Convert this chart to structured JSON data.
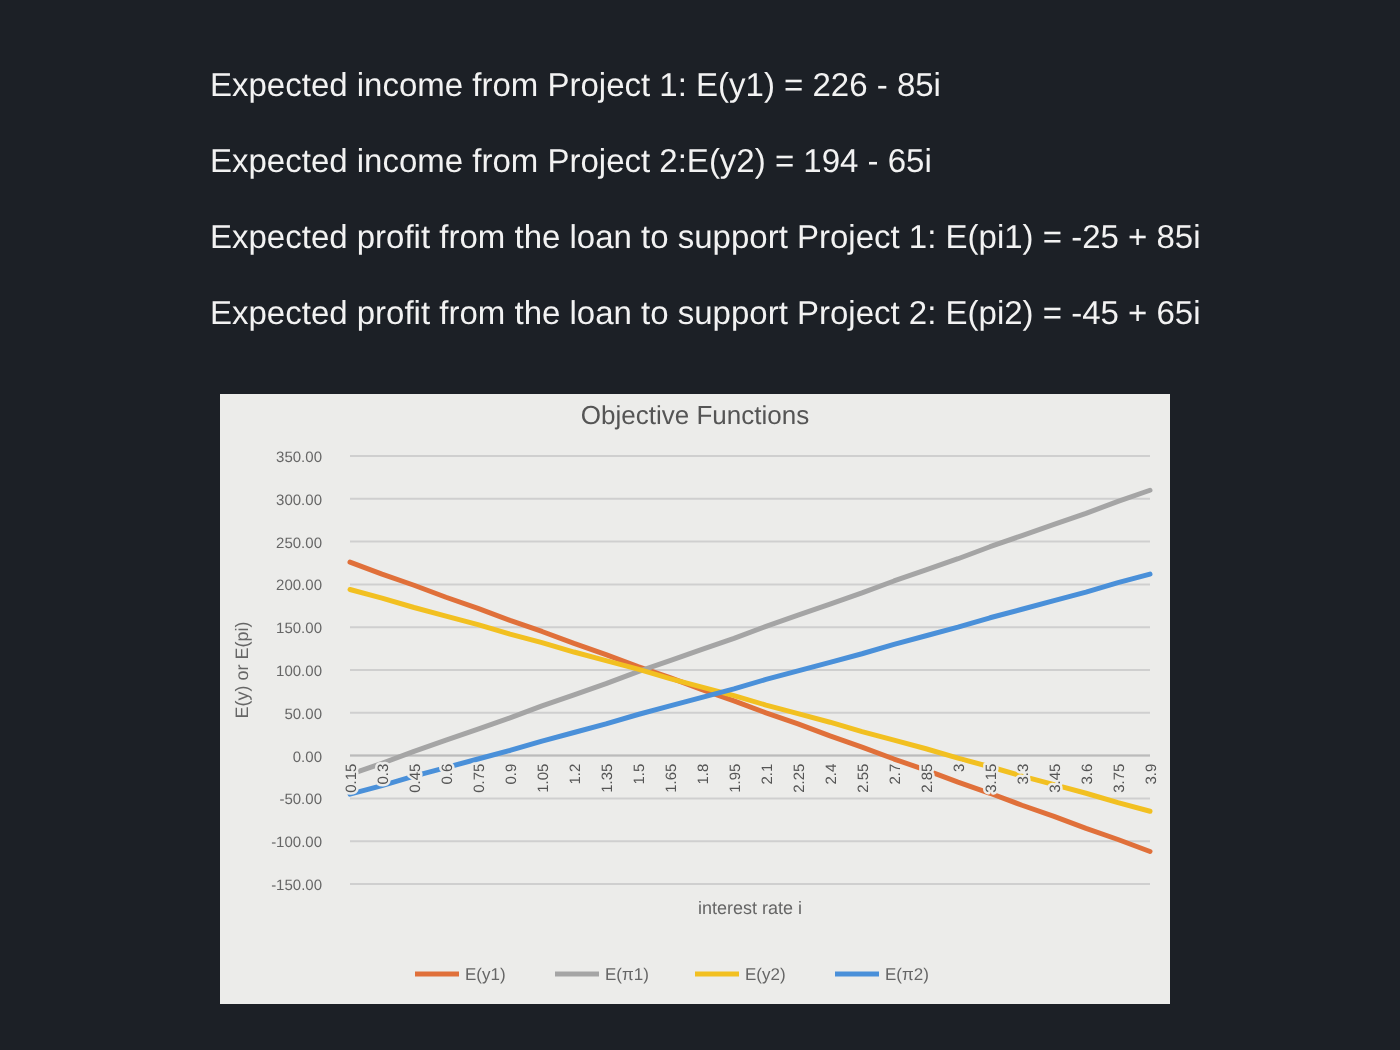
{
  "chart_data": {
    "type": "line",
    "title": "Objective Functions",
    "xlabel": "interest rate i",
    "ylabel": "E(y) or E(pi)",
    "annotations": [
      "Expected income from Project 1: E(y1) = 226 - 85i",
      "Expected income from Project 2:E(y2) = 194 - 65i",
      "Expected profit from the loan to support Project 1: E(pi1) = -25 + 85i",
      "Expected profit from the loan to support Project 2: E(pi2) = -45 + 65i"
    ],
    "categories": [
      "0.15",
      "0.3",
      "0.45",
      "0.6",
      "0.75",
      "0.9",
      "1.05",
      "1.2",
      "1.35",
      "1.5",
      "1.65",
      "1.8",
      "1.95",
      "2.1",
      "2.25",
      "2.4",
      "2.55",
      "2.7",
      "2.85",
      "3",
      "3.15",
      "3.3",
      "3.45",
      "3.6",
      "3.75",
      "3.9"
    ],
    "series": [
      {
        "name": "E(y1)",
        "color": "#e0703a",
        "values": [
          226,
          212,
          199,
          185,
          172,
          158,
          145,
          131,
          118,
          104,
          91,
          77,
          64,
          50,
          37,
          23,
          10,
          -4,
          -17,
          -31,
          -44,
          -58,
          -71,
          -85,
          -98,
          -112
        ]
      },
      {
        "name": "E(π1)",
        "color": "#a5a5a5",
        "values": [
          -22,
          -9,
          5,
          18,
          31,
          44,
          58,
          71,
          84,
          98,
          111,
          124,
          137,
          151,
          164,
          177,
          190,
          204,
          217,
          230,
          244,
          257,
          270,
          283,
          297,
          310
        ]
      },
      {
        "name": "E(y2)",
        "color": "#f2c021",
        "values": [
          194,
          184,
          173,
          163,
          153,
          142,
          132,
          121,
          111,
          101,
          90,
          80,
          70,
          59,
          49,
          39,
          28,
          18,
          8,
          -3,
          -13,
          -24,
          -34,
          -44,
          -55,
          -65
        ]
      },
      {
        "name": "E(π2)",
        "color": "#4a90d9",
        "values": [
          -45,
          -35,
          -24,
          -14,
          -4,
          6,
          17,
          27,
          37,
          48,
          58,
          68,
          78,
          89,
          99,
          109,
          119,
          130,
          140,
          150,
          161,
          171,
          181,
          191,
          202,
          212
        ]
      }
    ],
    "ylim": [
      -150,
      350
    ],
    "yticks": [
      {
        "value": -150,
        "label": "-150.00"
      },
      {
        "value": -100,
        "label": "-100.00"
      },
      {
        "value": -50,
        "label": "-50.00"
      },
      {
        "value": 0,
        "label": "0.00"
      },
      {
        "value": 50,
        "label": "50.00"
      },
      {
        "value": 100,
        "label": "100.00"
      },
      {
        "value": 150,
        "label": "150.00"
      },
      {
        "value": 200,
        "label": "200.00"
      },
      {
        "value": 250,
        "label": "250.00"
      },
      {
        "value": 300,
        "label": "300.00"
      },
      {
        "value": 350,
        "label": "350.00"
      }
    ],
    "grid": "y",
    "legend": "bottom",
    "marker": "none",
    "line_style": "solid"
  }
}
